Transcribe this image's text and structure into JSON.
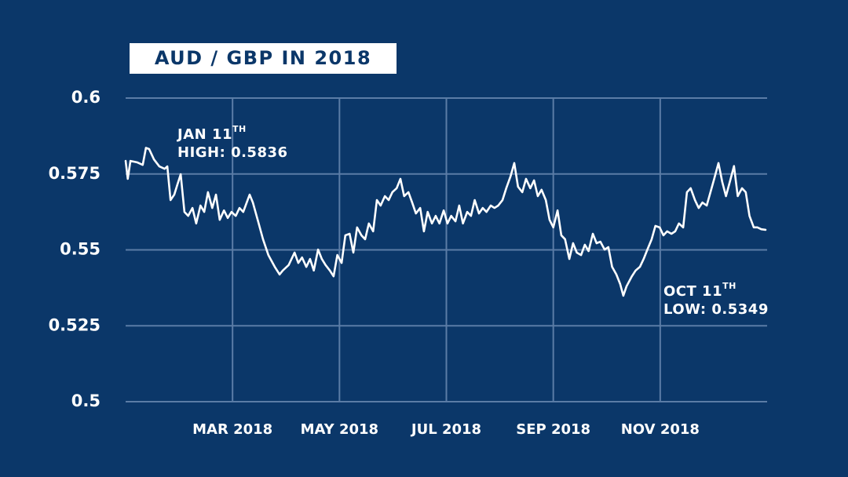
{
  "chart_data": {
    "type": "line",
    "title": "AUD / GBP IN 2018",
    "color": "#ffffff",
    "xlim": [
      1,
      13
    ],
    "xticks": [
      {
        "value": 3,
        "label": "MAR 2018"
      },
      {
        "value": 5,
        "label": "MAY 2018"
      },
      {
        "value": 7,
        "label": "JUL 2018"
      },
      {
        "value": 9,
        "label": "SEP 2018"
      },
      {
        "value": 11,
        "label": "NOV 2018"
      }
    ],
    "ylim": [
      0.5,
      0.6
    ],
    "yticks": [
      0.5,
      0.525,
      0.55,
      0.575,
      0.6
    ],
    "grid": true,
    "x": [
      1.0,
      1.04,
      1.09,
      1.22,
      1.32,
      1.38,
      1.44,
      1.53,
      1.63,
      1.73,
      1.78,
      1.84,
      1.91,
      1.97,
      2.03,
      2.1,
      2.17,
      2.25,
      2.32,
      2.4,
      2.47,
      2.54,
      2.62,
      2.69,
      2.76,
      2.84,
      2.91,
      2.98,
      3.06,
      3.13,
      3.2,
      3.32,
      3.38,
      3.47,
      3.57,
      3.67,
      3.79,
      3.88,
      3.94,
      4.05,
      4.16,
      4.23,
      4.3,
      4.38,
      4.45,
      4.52,
      4.6,
      4.67,
      4.74,
      4.82,
      4.89,
      4.96,
      5.04,
      5.11,
      5.19,
      5.26,
      5.33,
      5.41,
      5.48,
      5.55,
      5.63,
      5.7,
      5.77,
      5.85,
      5.92,
      5.99,
      6.07,
      6.14,
      6.21,
      6.29,
      6.36,
      6.43,
      6.51,
      6.58,
      6.65,
      6.73,
      6.8,
      6.87,
      6.95,
      7.02,
      7.09,
      7.17,
      7.24,
      7.31,
      7.39,
      7.46,
      7.53,
      7.61,
      7.68,
      7.75,
      7.83,
      7.9,
      7.97,
      8.05,
      8.12,
      8.2,
      8.27,
      8.34,
      8.42,
      8.49,
      8.57,
      8.64,
      8.71,
      8.78,
      8.86,
      8.93,
      9.0,
      9.08,
      9.15,
      9.22,
      9.3,
      9.37,
      9.44,
      9.52,
      9.59,
      9.66,
      9.74,
      9.81,
      9.88,
      9.96,
      10.03,
      10.1,
      10.18,
      10.25,
      10.31,
      10.37,
      10.47,
      10.54,
      10.62,
      10.69,
      10.76,
      10.84,
      10.91,
      10.99,
      11.06,
      11.13,
      11.21,
      11.28,
      11.35,
      11.43,
      11.5,
      11.57,
      11.65,
      11.72,
      11.79,
      11.87,
      11.94,
      12.01,
      12.09,
      12.16,
      12.23,
      12.31,
      12.38,
      12.45,
      12.53,
      12.6,
      12.67,
      12.75,
      12.82,
      12.89,
      12.97
    ],
    "values": [
      0.5793,
      0.5734,
      0.5793,
      0.5788,
      0.578,
      0.5836,
      0.5832,
      0.5798,
      0.5775,
      0.5767,
      0.5775,
      0.5664,
      0.5682,
      0.5716,
      0.5749,
      0.5625,
      0.5612,
      0.5638,
      0.5587,
      0.5646,
      0.5625,
      0.569,
      0.5638,
      0.5682,
      0.5599,
      0.563,
      0.5605,
      0.5625,
      0.5612,
      0.5638,
      0.5625,
      0.5682,
      0.5656,
      0.5599,
      0.5535,
      0.5483,
      0.5444,
      0.5419,
      0.5432,
      0.545,
      0.5491,
      0.5457,
      0.5475,
      0.5444,
      0.547,
      0.5432,
      0.5501,
      0.547,
      0.545,
      0.5432,
      0.5413,
      0.5483,
      0.5457,
      0.5548,
      0.5553,
      0.5491,
      0.5574,
      0.5548,
      0.5535,
      0.5587,
      0.5561,
      0.5664,
      0.5646,
      0.5677,
      0.5664,
      0.569,
      0.5703,
      0.5734,
      0.5677,
      0.569,
      0.5656,
      0.562,
      0.5638,
      0.5561,
      0.5625,
      0.5587,
      0.5612,
      0.5587,
      0.563,
      0.5587,
      0.5612,
      0.5594,
      0.5646,
      0.5587,
      0.5625,
      0.5612,
      0.5664,
      0.562,
      0.5638,
      0.5625,
      0.5646,
      0.5638,
      0.5646,
      0.5664,
      0.5703,
      0.5742,
      0.5786,
      0.5708,
      0.569,
      0.5734,
      0.5703,
      0.5729,
      0.5677,
      0.5698,
      0.5664,
      0.5599,
      0.5574,
      0.563,
      0.5548,
      0.5535,
      0.547,
      0.5522,
      0.5491,
      0.5483,
      0.5517,
      0.5496,
      0.5553,
      0.5522,
      0.5527,
      0.5501,
      0.5509,
      0.5444,
      0.5419,
      0.5388,
      0.5349,
      0.538,
      0.5413,
      0.5432,
      0.5444,
      0.547,
      0.5501,
      0.5535,
      0.5579,
      0.5574,
      0.5548,
      0.5561,
      0.5553,
      0.5561,
      0.5587,
      0.5574,
      0.569,
      0.5703,
      0.5664,
      0.5638,
      0.5656,
      0.5646,
      0.569,
      0.5734,
      0.5786,
      0.5724,
      0.5677,
      0.5729,
      0.5776,
      0.5677,
      0.5703,
      0.569,
      0.5612,
      0.5574,
      0.5574,
      0.5568,
      0.5566
    ],
    "annotations": [
      {
        "date": "JAN 11",
        "suffix": "TH",
        "text": "HIGH: 0.5836"
      },
      {
        "date": "OCT 11",
        "suffix": "TH",
        "text": "LOW: 0.5349"
      }
    ]
  }
}
